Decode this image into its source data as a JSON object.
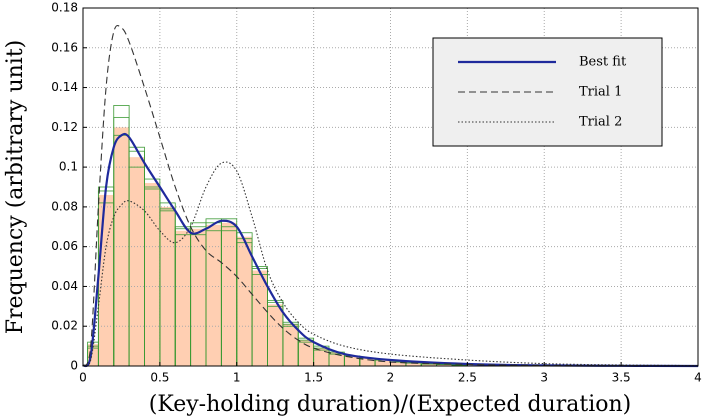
{
  "chart_data": {
    "type": "histogram",
    "x_label": "(Key-holding duration)/(Expected duration)",
    "y_label": "Frequency (arbitrary unit)",
    "xlim": [
      0,
      4
    ],
    "xticks": [
      0,
      0.5,
      1,
      1.5,
      2,
      2.5,
      3,
      3.5,
      4
    ],
    "ylim": [
      0,
      0.18
    ],
    "yticks": [
      0,
      0.02,
      0.04,
      0.06,
      0.08,
      0.1,
      0.12,
      0.14,
      0.16,
      0.18
    ],
    "grid": true,
    "legend_position": "upper right",
    "bins": [
      0.03,
      0.1,
      0.2,
      0.3,
      0.4,
      0.5,
      0.6,
      0.7,
      0.8,
      0.9,
      1.0,
      1.1,
      1.2,
      1.3,
      1.4,
      1.5,
      1.6,
      1.7,
      1.8,
      1.9,
      2.0,
      2.1,
      2.2,
      2.3,
      2.4,
      2.5
    ],
    "counts": [
      0.011,
      0.086,
      0.12,
      0.105,
      0.092,
      0.08,
      0.068,
      0.069,
      0.071,
      0.072,
      0.065,
      0.048,
      0.031,
      0.021,
      0.013,
      0.009,
      0.007,
      0.005,
      0.004,
      0.003,
      0.002,
      0.0015,
      0.001,
      0.0008,
      0.0005
    ],
    "hist_color": "#ffcfb2",
    "trial_color": "#3c9a34",
    "trials": [
      [
        0.009,
        0.082,
        0.131,
        0.11,
        0.09,
        0.078,
        0.07,
        0.072,
        0.074,
        0.068,
        0.062,
        0.05,
        0.033,
        0.02,
        0.012,
        0.008,
        0.006,
        0.005,
        0.004,
        0.003,
        0.002,
        0.0015,
        0.001,
        0.0008,
        0.0005
      ],
      [
        0.012,
        0.09,
        0.125,
        0.1,
        0.094,
        0.082,
        0.066,
        0.066,
        0.068,
        0.074,
        0.067,
        0.046,
        0.03,
        0.022,
        0.014,
        0.01,
        0.007,
        0.005,
        0.004,
        0.003,
        0.002,
        0.0015,
        0.001,
        0.0008,
        0.0005
      ],
      [
        0.01,
        0.088,
        0.116,
        0.108,
        0.089,
        0.079,
        0.069,
        0.07,
        0.072,
        0.07,
        0.064,
        0.049,
        0.032,
        0.021,
        0.013,
        0.009,
        0.006,
        0.005,
        0.004,
        0.003,
        0.002,
        0.0015,
        0.001,
        0.0008,
        0.0005
      ]
    ],
    "x": [
      0,
      0.05,
      0.1,
      0.15,
      0.2,
      0.25,
      0.3,
      0.4,
      0.5,
      0.6,
      0.7,
      0.8,
      0.9,
      1.0,
      1.1,
      1.2,
      1.3,
      1.4,
      1.5,
      1.7,
      2.0,
      2.5,
      3.0,
      3.5,
      4.0
    ],
    "series": [
      {
        "name": "Best fit",
        "color": "#1f2a9c",
        "dash": "solid",
        "values": [
          0,
          0.005,
          0.045,
          0.09,
          0.11,
          0.116,
          0.115,
          0.102,
          0.09,
          0.078,
          0.067,
          0.069,
          0.073,
          0.07,
          0.055,
          0.04,
          0.027,
          0.018,
          0.012,
          0.006,
          0.003,
          0.001,
          0.0003,
          0.0001,
          0
        ]
      },
      {
        "name": "Trial 1",
        "color": "#333333",
        "dash": "dashed",
        "values": [
          0,
          0.01,
          0.08,
          0.14,
          0.168,
          0.17,
          0.163,
          0.14,
          0.115,
          0.09,
          0.07,
          0.058,
          0.052,
          0.045,
          0.036,
          0.027,
          0.019,
          0.013,
          0.009,
          0.005,
          0.002,
          0.0008,
          0.0003,
          0.0001,
          0
        ]
      },
      {
        "name": "Trial 2",
        "color": "#333333",
        "dash": "dotted",
        "values": [
          0,
          0.003,
          0.03,
          0.06,
          0.075,
          0.081,
          0.083,
          0.078,
          0.068,
          0.062,
          0.07,
          0.09,
          0.102,
          0.098,
          0.075,
          0.048,
          0.032,
          0.022,
          0.016,
          0.01,
          0.006,
          0.003,
          0.0012,
          0.0005,
          0.0002
        ]
      }
    ]
  }
}
